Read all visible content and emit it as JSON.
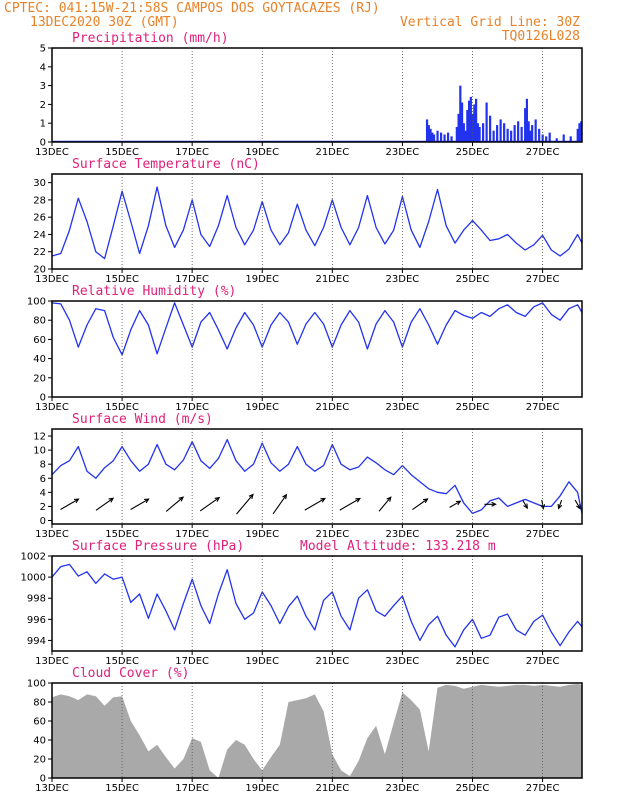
{
  "header": {
    "line1": "CPTEC:  041:15W-21:58S  CAMPOS DOS GOYTACAZES (RJ)",
    "line2_left": "13DEC2020 30Z (GMT)",
    "line2_right": "Vertical Grid Line: 30Z",
    "line3_right": "TQ0126L028"
  },
  "colors": {
    "header": "#e8822a",
    "title": "#e0207a",
    "line": "#2233ee",
    "cloud": "#a9a9a9"
  },
  "x_axis": {
    "tick_labels": [
      "13DEC",
      "15DEC",
      "17DEC",
      "19DEC",
      "21DEC",
      "23DEC",
      "25DEC",
      "27DEC"
    ],
    "tick_days": [
      0,
      2,
      4,
      6,
      8,
      10,
      12,
      14
    ],
    "day_range": [
      0,
      15.125
    ]
  },
  "chart_data": [
    {
      "id": "precip",
      "type": "bar",
      "title": "Precipitation (mm/h)",
      "ylim": [
        0,
        5
      ],
      "yticks": [
        "0",
        "1",
        "2",
        "3",
        "4",
        "5"
      ],
      "x": [
        10.7,
        10.75,
        10.8,
        10.85,
        10.9,
        11.0,
        11.1,
        11.2,
        11.3,
        11.4,
        11.55,
        11.6,
        11.65,
        11.7,
        11.75,
        11.8,
        11.85,
        11.9,
        11.95,
        12.0,
        12.05,
        12.1,
        12.15,
        12.2,
        12.3,
        12.4,
        12.5,
        12.6,
        12.7,
        12.8,
        12.9,
        13.0,
        13.1,
        13.2,
        13.3,
        13.4,
        13.5,
        13.55,
        13.6,
        13.65,
        13.7,
        13.8,
        13.9,
        14.0,
        14.1,
        14.2,
        14.4,
        14.6,
        14.8,
        15.0,
        15.05,
        15.1
      ],
      "values": [
        1.2,
        0.9,
        0.7,
        0.5,
        0.4,
        0.6,
        0.5,
        0.4,
        0.5,
        0.3,
        0.8,
        1.5,
        3.0,
        2.1,
        1.0,
        0.6,
        1.7,
        2.2,
        2.4,
        1.5,
        2.0,
        2.3,
        1.0,
        0.8,
        1.0,
        2.1,
        1.4,
        0.6,
        0.9,
        1.2,
        1.0,
        0.7,
        0.6,
        0.9,
        1.1,
        0.8,
        1.8,
        2.3,
        1.1,
        0.6,
        0.9,
        1.2,
        0.7,
        0.4,
        0.3,
        0.5,
        0.2,
        0.4,
        0.3,
        0.7,
        1.0,
        1.1
      ]
    },
    {
      "id": "temp",
      "type": "line",
      "title": "Surface Temperature (nC)",
      "ylim": [
        20,
        31
      ],
      "yticks": [
        "20",
        "22",
        "24",
        "26",
        "28",
        "30"
      ],
      "x": [
        0,
        0.25,
        0.5,
        0.75,
        1.0,
        1.25,
        1.5,
        1.75,
        2.0,
        2.25,
        2.5,
        2.75,
        3.0,
        3.25,
        3.5,
        3.75,
        4.0,
        4.25,
        4.5,
        4.75,
        5.0,
        5.25,
        5.5,
        5.75,
        6.0,
        6.25,
        6.5,
        6.75,
        7.0,
        7.25,
        7.5,
        7.75,
        8.0,
        8.25,
        8.5,
        8.75,
        9.0,
        9.25,
        9.5,
        9.75,
        10.0,
        10.25,
        10.5,
        10.75,
        11.0,
        11.25,
        11.5,
        11.75,
        12.0,
        12.25,
        12.5,
        12.75,
        13.0,
        13.25,
        13.5,
        13.75,
        14.0,
        14.25,
        14.5,
        14.75,
        15.0,
        15.125
      ],
      "values": [
        21.5,
        21.8,
        24.5,
        28.2,
        25.5,
        22.0,
        21.2,
        25.0,
        29.0,
        25.5,
        21.8,
        25.0,
        29.5,
        25.0,
        22.5,
        24.5,
        28.0,
        24.0,
        22.6,
        25.0,
        28.5,
        24.8,
        22.8,
        24.5,
        27.8,
        24.5,
        22.8,
        24.2,
        27.5,
        24.5,
        22.7,
        24.8,
        28.0,
        24.8,
        22.8,
        24.8,
        28.5,
        24.8,
        22.9,
        24.5,
        28.4,
        24.5,
        22.5,
        25.5,
        29.2,
        25.0,
        23.0,
        24.5,
        25.6,
        24.5,
        23.3,
        23.5,
        24.0,
        23.0,
        22.2,
        22.8,
        23.9,
        22.2,
        21.5,
        22.3,
        24.0,
        23.0
      ]
    },
    {
      "id": "rh",
      "type": "line",
      "title": "Relative Humidity (%)",
      "ylim": [
        0,
        100
      ],
      "yticks": [
        "0",
        "20",
        "40",
        "60",
        "80",
        "100"
      ],
      "x": [
        0,
        0.25,
        0.5,
        0.75,
        1.0,
        1.25,
        1.5,
        1.75,
        2.0,
        2.25,
        2.5,
        2.75,
        3.0,
        3.25,
        3.5,
        3.75,
        4.0,
        4.25,
        4.5,
        4.75,
        5.0,
        5.25,
        5.5,
        5.75,
        6.0,
        6.25,
        6.5,
        6.75,
        7.0,
        7.25,
        7.5,
        7.75,
        8.0,
        8.25,
        8.5,
        8.75,
        9.0,
        9.25,
        9.5,
        9.75,
        10.0,
        10.25,
        10.5,
        10.75,
        11.0,
        11.25,
        11.5,
        11.75,
        12.0,
        12.25,
        12.5,
        12.75,
        13.0,
        13.25,
        13.5,
        13.75,
        14.0,
        14.25,
        14.5,
        14.75,
        15.0,
        15.125
      ],
      "values": [
        98,
        97,
        80,
        52,
        75,
        92,
        90,
        62,
        44,
        70,
        90,
        75,
        45,
        72,
        98,
        75,
        52,
        78,
        88,
        70,
        50,
        72,
        88,
        75,
        52,
        75,
        88,
        78,
        55,
        76,
        88,
        76,
        52,
        75,
        90,
        78,
        50,
        76,
        90,
        78,
        52,
        78,
        92,
        75,
        55,
        75,
        90,
        85,
        82,
        88,
        84,
        92,
        96,
        88,
        84,
        94,
        98,
        86,
        80,
        92,
        96,
        88
      ]
    },
    {
      "id": "wind",
      "type": "line",
      "title": "Surface Wind (m/s)",
      "ylim": [
        -0.5,
        13
      ],
      "yticks": [
        "0",
        "2",
        "4",
        "6",
        "8",
        "10",
        "12"
      ],
      "x": [
        0,
        0.25,
        0.5,
        0.75,
        1.0,
        1.25,
        1.5,
        1.75,
        2.0,
        2.25,
        2.5,
        2.75,
        3.0,
        3.25,
        3.5,
        3.75,
        4.0,
        4.25,
        4.5,
        4.75,
        5.0,
        5.25,
        5.5,
        5.75,
        6.0,
        6.25,
        6.5,
        6.75,
        7.0,
        7.25,
        7.5,
        7.75,
        8.0,
        8.25,
        8.5,
        8.75,
        9.0,
        9.25,
        9.5,
        9.75,
        10.0,
        10.25,
        10.5,
        10.75,
        11.0,
        11.25,
        11.5,
        11.75,
        12.0,
        12.25,
        12.5,
        12.75,
        13.0,
        13.25,
        13.5,
        13.75,
        14.0,
        14.25,
        14.5,
        14.75,
        15.0,
        15.125
      ],
      "values": [
        6.5,
        7.8,
        8.5,
        10.5,
        7.0,
        6.0,
        7.5,
        8.5,
        10.5,
        8.5,
        7.0,
        8.0,
        10.8,
        8.0,
        7.2,
        8.6,
        11.2,
        8.5,
        7.4,
        8.8,
        11.5,
        8.5,
        7.0,
        8.0,
        11.0,
        8.2,
        7.0,
        8.0,
        10.5,
        8.0,
        7.0,
        7.8,
        10.8,
        8.0,
        7.2,
        7.6,
        9.0,
        8.2,
        7.2,
        6.5,
        7.8,
        6.5,
        5.5,
        4.5,
        4.0,
        3.8,
        5.0,
        2.5,
        1.0,
        1.5,
        2.8,
        3.2,
        2.0,
        2.5,
        3.0,
        2.5,
        2.0,
        2.0,
        3.5,
        5.5,
        4.0,
        1.0
      ],
      "wind_barbs": {
        "x": [
          0.5,
          1.5,
          2.5,
          3.5,
          4.5,
          5.5,
          6.5,
          7.5,
          8.5,
          9.5,
          10.5,
          11.5,
          12.5,
          13.5,
          14.0,
          14.5,
          15.0
        ],
        "speed": [
          7,
          7,
          7,
          7.5,
          8,
          9,
          8,
          8,
          8,
          6,
          6,
          3.5,
          3,
          2,
          2,
          2,
          2.5
        ],
        "dir_deg": [
          240,
          235,
          240,
          230,
          235,
          220,
          215,
          240,
          240,
          220,
          235,
          240,
          270,
          330,
          350,
          20,
          330
        ]
      }
    },
    {
      "id": "pressure",
      "type": "line",
      "title": "Surface Pressure (hPa)",
      "annotation": "Model Altitude: 133.218 m",
      "ylim": [
        993,
        1002
      ],
      "yticks": [
        "994",
        "996",
        "998",
        "1000",
        "1002"
      ],
      "x": [
        0,
        0.25,
        0.5,
        0.75,
        1.0,
        1.25,
        1.5,
        1.75,
        2.0,
        2.25,
        2.5,
        2.75,
        3.0,
        3.25,
        3.5,
        3.75,
        4.0,
        4.25,
        4.5,
        4.75,
        5.0,
        5.25,
        5.5,
        5.75,
        6.0,
        6.25,
        6.5,
        6.75,
        7.0,
        7.25,
        7.5,
        7.75,
        8.0,
        8.25,
        8.5,
        8.75,
        9.0,
        9.25,
        9.5,
        9.75,
        10.0,
        10.25,
        10.5,
        10.75,
        11.0,
        11.25,
        11.5,
        11.75,
        12.0,
        12.25,
        12.5,
        12.75,
        13.0,
        13.25,
        13.5,
        13.75,
        14.0,
        14.25,
        14.5,
        14.75,
        15.0,
        15.125
      ],
      "values": [
        1000.0,
        1001.0,
        1001.2,
        1000.1,
        1000.5,
        999.4,
        1000.3,
        999.8,
        1000.0,
        997.6,
        998.4,
        996.1,
        998.4,
        996.8,
        995.0,
        997.5,
        999.8,
        997.3,
        995.6,
        998.4,
        1000.7,
        997.5,
        996.0,
        996.6,
        998.6,
        997.3,
        995.6,
        997.2,
        998.2,
        996.3,
        995.0,
        997.8,
        998.6,
        996.3,
        995.0,
        998.0,
        998.8,
        996.8,
        996.3,
        997.3,
        998.2,
        995.8,
        994.0,
        995.5,
        996.3,
        994.5,
        993.4,
        995.0,
        996.0,
        994.2,
        994.5,
        996.2,
        996.5,
        995.0,
        994.5,
        995.8,
        996.4,
        994.8,
        993.5,
        994.8,
        995.8,
        995.3
      ]
    },
    {
      "id": "cloud",
      "type": "area",
      "title": "Cloud Cover (%)",
      "ylim": [
        0,
        100
      ],
      "yticks": [
        "0",
        "20",
        "40",
        "60",
        "80",
        "100"
      ],
      "x": [
        0,
        0.25,
        0.5,
        0.75,
        1.0,
        1.25,
        1.5,
        1.75,
        2.0,
        2.25,
        2.5,
        2.75,
        3.0,
        3.25,
        3.5,
        3.75,
        4.0,
        4.25,
        4.5,
        4.75,
        5.0,
        5.25,
        5.5,
        5.75,
        6.0,
        6.25,
        6.5,
        6.75,
        7.0,
        7.25,
        7.5,
        7.75,
        8.0,
        8.25,
        8.5,
        8.75,
        9.0,
        9.25,
        9.5,
        9.75,
        10.0,
        10.25,
        10.5,
        10.75,
        11.0,
        11.25,
        11.5,
        11.75,
        12.0,
        12.25,
        12.5,
        12.75,
        13.0,
        13.25,
        13.5,
        13.75,
        14.0,
        14.25,
        14.5,
        14.75,
        15.0,
        15.125
      ],
      "values": [
        85,
        88,
        86,
        82,
        88,
        86,
        76,
        85,
        86,
        60,
        45,
        28,
        35,
        22,
        10,
        20,
        42,
        38,
        8,
        0,
        30,
        40,
        35,
        20,
        8,
        22,
        35,
        80,
        82,
        84,
        88,
        70,
        25,
        8,
        2,
        18,
        42,
        55,
        25,
        58,
        90,
        82,
        72,
        28,
        95,
        98,
        97,
        94,
        96,
        98,
        97,
        96,
        97,
        98,
        98,
        97,
        98,
        97,
        96,
        98,
        99,
        98
      ]
    }
  ]
}
